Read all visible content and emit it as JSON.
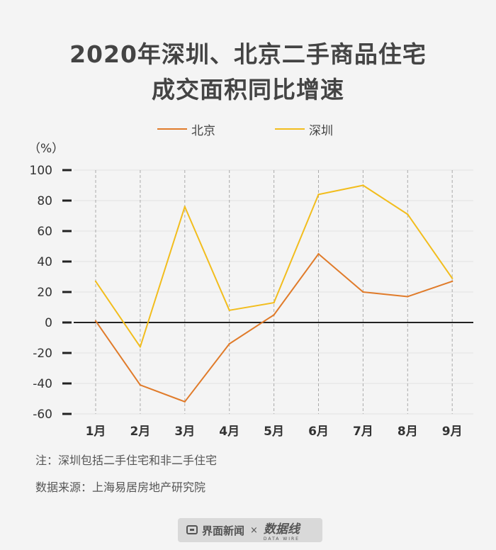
{
  "title": {
    "line1": "2020年深圳、北京二手商品住宅",
    "line2": "成交面积同比增速"
  },
  "colors": {
    "beijing": "#E07B2A",
    "shenzhen": "#F2BD1D",
    "background": "#f4f4f4"
  },
  "chart_data": {
    "type": "line",
    "title": "2020年深圳、北京二手商品住宅成交面积同比增速",
    "ylabel": "（%）",
    "xlabel": "",
    "categories": [
      "1月",
      "2月",
      "3月",
      "4月",
      "5月",
      "6月",
      "7月",
      "8月",
      "9月"
    ],
    "ylim": [
      -60,
      100
    ],
    "yticks": [
      100,
      80,
      60,
      40,
      20,
      0,
      -20,
      -40,
      -60
    ],
    "legend_position": "top-center",
    "series": [
      {
        "name": "北京",
        "color": "#E07B2A",
        "values": [
          1,
          -41,
          -52,
          -14,
          5,
          45,
          20,
          17,
          27
        ]
      },
      {
        "name": "深圳",
        "color": "#F2BD1D",
        "values": [
          27,
          -16,
          76,
          8,
          13,
          84,
          90,
          71,
          29
        ]
      }
    ]
  },
  "notes": {
    "note": "注：深圳包括二手住宅和非二手住宅",
    "source": "数据来源：上海易居房地产研究院"
  },
  "footer": {
    "brand": "界面新闻",
    "separator": "×",
    "brand2": "数据线",
    "brand2_sub": "DATA WIRE"
  }
}
